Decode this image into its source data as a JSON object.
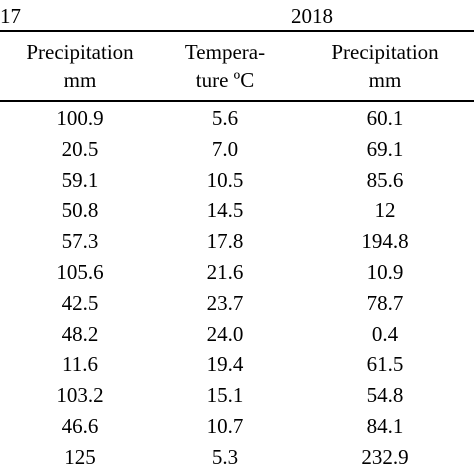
{
  "header": {
    "year_left": "17",
    "year_right": "2018",
    "columns": [
      {
        "line1": "Precipitation",
        "line2": "mm"
      },
      {
        "line1": "Tempera-",
        "line2": "ture ºC"
      },
      {
        "line1": "Precipitation",
        "line2": "mm"
      }
    ]
  },
  "rows": [
    [
      "100.9",
      "5.6",
      "60.1"
    ],
    [
      "20.5",
      "7.0",
      "69.1"
    ],
    [
      "59.1",
      "10.5",
      "85.6"
    ],
    [
      "50.8",
      "14.5",
      "12"
    ],
    [
      "57.3",
      "17.8",
      "194.8"
    ],
    [
      "105.6",
      "21.6",
      "10.9"
    ],
    [
      "42.5",
      "23.7",
      "78.7"
    ],
    [
      "48.2",
      "24.0",
      "0.4"
    ],
    [
      "11.6",
      "19.4",
      "61.5"
    ],
    [
      "103.2",
      "15.1",
      "54.8"
    ],
    [
      "46.6",
      "10.7",
      "84.1"
    ],
    [
      "125",
      "5.3",
      "232.9"
    ]
  ]
}
